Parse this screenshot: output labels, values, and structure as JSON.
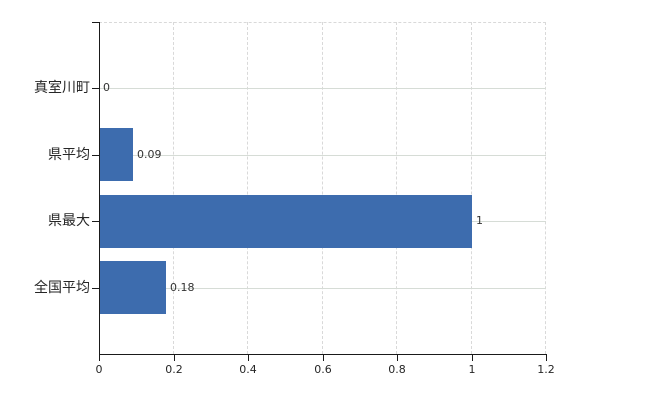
{
  "chart_data": {
    "type": "bar",
    "orientation": "horizontal",
    "title": "",
    "xlabel": "",
    "ylabel": "",
    "categories": [
      "真室川町",
      "県平均",
      "県最大",
      "全国平均"
    ],
    "values": [
      0,
      0.09,
      1,
      0.18
    ],
    "value_labels": [
      "0",
      "0.09",
      "1",
      "0.18"
    ],
    "x_ticks": [
      0,
      0.2,
      0.4,
      0.6,
      0.8,
      1,
      1.2
    ],
    "x_tick_labels": [
      "0",
      "0.2",
      "0.4",
      "0.6",
      "0.8",
      "1",
      "1.2"
    ],
    "xlim": [
      0,
      1.2
    ],
    "grid": true,
    "legend": false,
    "colors": {
      "bar": "#3d6cae",
      "grid_vertical": "#d9d9d9",
      "grid_horizontal": "#d6dcd6",
      "axis": "#1a1a1a",
      "label_text": "#333333",
      "background": "#ffffff"
    }
  }
}
